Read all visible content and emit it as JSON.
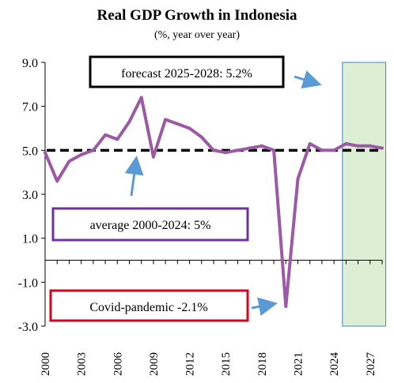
{
  "chart_data": {
    "type": "line",
    "title": "Real GDP Growth in Indonesia",
    "subtitle": "(%, year over year)",
    "xlabel": "",
    "ylabel": "",
    "ylim": [
      -3.0,
      9.0
    ],
    "xlim": [
      2000,
      2028
    ],
    "y_ticks": [
      "9.0",
      "7.0",
      "5.0",
      "3.0",
      "1.0",
      "-1.0",
      "-3.0"
    ],
    "y_tick_values": [
      9,
      7,
      5,
      3,
      1,
      -1,
      -3
    ],
    "x_ticks": [
      "2000",
      "2003",
      "2006",
      "2009",
      "2012",
      "2015",
      "2018",
      "2021",
      "2024",
      "2027"
    ],
    "x_tick_values": [
      2000,
      2003,
      2006,
      2009,
      2012,
      2015,
      2018,
      2021,
      2024,
      2027
    ],
    "grid": false,
    "legend": "none",
    "series": [
      {
        "color": "#9b59a6",
        "points": [
          [
            2000,
            4.9
          ],
          [
            2001,
            3.6
          ],
          [
            2002,
            4.5
          ],
          [
            2003,
            4.8
          ],
          [
            2004,
            5.0
          ],
          [
            2005,
            5.7
          ],
          [
            2006,
            5.5
          ],
          [
            2007,
            6.3
          ],
          [
            2008,
            7.4
          ],
          [
            2009,
            4.7
          ],
          [
            2010,
            6.4
          ],
          [
            2011,
            6.2
          ],
          [
            2012,
            6.0
          ],
          [
            2013,
            5.6
          ],
          [
            2014,
            5.0
          ],
          [
            2015,
            4.9
          ],
          [
            2016,
            5.0
          ],
          [
            2017,
            5.1
          ],
          [
            2018,
            5.2
          ],
          [
            2019,
            5.0
          ],
          [
            2020,
            -2.1
          ],
          [
            2021,
            3.7
          ],
          [
            2022,
            5.3
          ],
          [
            2023,
            5.0
          ],
          [
            2024,
            5.0
          ],
          [
            2025,
            5.3
          ],
          [
            2026,
            5.2
          ],
          [
            2027,
            5.2
          ],
          [
            2028,
            5.1
          ]
        ]
      }
    ],
    "average_line": {
      "value": 5.0,
      "color": "#000000",
      "style": "dashed"
    },
    "forecast_band": {
      "from": 2024.7,
      "to": 2028.3,
      "color": "#dcefd5",
      "border": "#4a86b8"
    },
    "annotations": [
      {
        "text": "forecast 2025-2028: 5.2%",
        "box_color": "#000000",
        "arrow_color": "#5b9bd5"
      },
      {
        "text": "average 2000-2024: 5%",
        "box_color": "#7030a0",
        "arrow_color": "#5b9bd5"
      },
      {
        "text": "Covid-pandemic -2.1%",
        "box_color": "#e0001b",
        "arrow_color": "#5b9bd5"
      }
    ]
  }
}
